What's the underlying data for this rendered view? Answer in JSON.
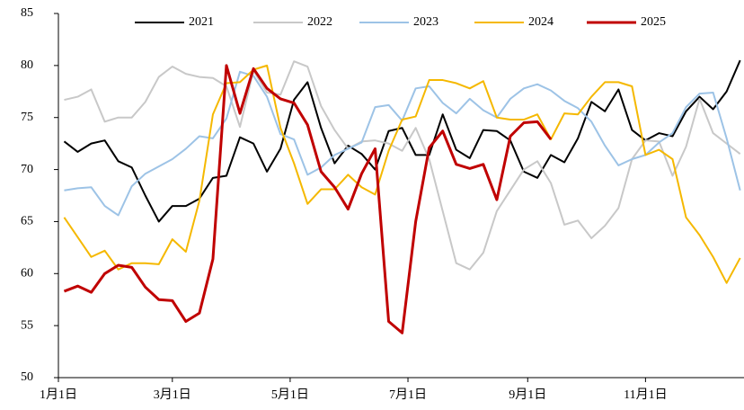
{
  "chart_data": {
    "type": "line",
    "x": [
      3,
      10,
      17,
      24,
      31,
      38,
      45,
      52,
      59,
      66,
      73,
      80,
      87,
      94,
      101,
      108,
      115,
      122,
      129,
      136,
      143,
      150,
      157,
      164,
      171,
      178,
      185,
      192,
      199,
      206,
      213,
      220,
      227,
      234,
      241,
      248,
      255,
      262,
      269,
      276,
      283,
      290,
      297,
      304,
      311,
      318,
      325,
      332,
      339,
      346,
      353
    ],
    "xlim": [
      0,
      355
    ],
    "xticks": [
      {
        "value": 0,
        "label": "1月1日"
      },
      {
        "value": 59,
        "label": "3月1日"
      },
      {
        "value": 120,
        "label": "5月1日"
      },
      {
        "value": 181,
        "label": "7月1日"
      },
      {
        "value": 243,
        "label": "9月1日"
      },
      {
        "value": 304,
        "label": "11月1日"
      }
    ],
    "ylim": [
      50,
      85
    ],
    "yticks": [
      50,
      55,
      60,
      65,
      70,
      75,
      80,
      85
    ],
    "grid": false,
    "legend": "top",
    "series": [
      {
        "name": "2021",
        "color": "#000000",
        "values": [
          72.7,
          71.7,
          72.5,
          72.8,
          70.8,
          70.2,
          67.5,
          65.0,
          66.5,
          66.5,
          67.2,
          69.2,
          69.4,
          73.1,
          72.5,
          69.8,
          72.0,
          76.7,
          78.4,
          74.0,
          70.6,
          72.3,
          71.5,
          70.0,
          73.7,
          74.0,
          71.4,
          71.4,
          75.3,
          71.9,
          71.1,
          73.8,
          73.7,
          72.8,
          69.8,
          69.2,
          71.4,
          70.7,
          73.0,
          76.5,
          75.6,
          77.7,
          73.8,
          72.8,
          73.5,
          73.2,
          75.6,
          77.0,
          75.8,
          77.5,
          80.5
        ]
      },
      {
        "name": "2022",
        "color": "#c8c8c8",
        "values": [
          76.7,
          77.0,
          77.7,
          74.6,
          75.0,
          75.0,
          76.5,
          78.9,
          79.9,
          79.2,
          78.9,
          78.8,
          78.0,
          74.1,
          79.5,
          77.4,
          77.2,
          80.4,
          79.9,
          76.1,
          73.8,
          72.0,
          72.7,
          72.8,
          72.5,
          71.8,
          74.0,
          71.0,
          66.0,
          61.0,
          60.4,
          62.0,
          66.0,
          68.0,
          70.0,
          70.8,
          68.7,
          64.7,
          65.1,
          63.4,
          64.6,
          66.3,
          71.0,
          72.8,
          72.7,
          69.4,
          72.2,
          76.8,
          73.5,
          72.5,
          71.5
        ]
      },
      {
        "name": "2023",
        "color": "#9dc3e6",
        "values": [
          68.0,
          68.2,
          68.3,
          66.5,
          65.6,
          68.4,
          69.6,
          70.3,
          71.0,
          72.0,
          73.2,
          73.0,
          74.9,
          79.4,
          79.0,
          77.0,
          73.4,
          72.9,
          69.5,
          70.2,
          71.4,
          72.0,
          72.6,
          76.0,
          76.2,
          74.7,
          77.8,
          78.0,
          76.4,
          75.4,
          76.8,
          75.7,
          75.0,
          76.8,
          77.8,
          78.2,
          77.6,
          76.6,
          75.9,
          74.6,
          72.3,
          70.4,
          71.0,
          71.4,
          72.6,
          73.5,
          76.0,
          77.3,
          77.4,
          73.0,
          68.0
        ]
      },
      {
        "name": "2024",
        "color": "#f5b800",
        "values": [
          65.4,
          63.5,
          61.6,
          62.2,
          60.4,
          61.0,
          61.0,
          60.9,
          63.3,
          62.1,
          67.0,
          75.3,
          78.3,
          78.4,
          79.6,
          80.0,
          74.0,
          70.6,
          66.7,
          68.1,
          68.1,
          69.5,
          68.3,
          67.6,
          71.8,
          74.8,
          75.1,
          78.6,
          78.6,
          78.3,
          77.8,
          78.5,
          75.0,
          74.8,
          74.8,
          75.3,
          72.9,
          75.4,
          75.3,
          77.0,
          78.4,
          78.4,
          78.0,
          71.4,
          71.9,
          71.0,
          65.4,
          63.7,
          61.6,
          59.1,
          61.5
        ]
      },
      {
        "name": "2025",
        "color": "#c00000",
        "values": [
          58.3,
          58.8,
          58.2,
          60.0,
          60.8,
          60.6,
          58.7,
          57.5,
          57.4,
          55.4,
          56.2,
          61.4,
          80.0,
          75.4,
          79.7,
          77.8,
          76.8,
          76.4,
          74.3,
          69.8,
          68.3,
          66.2,
          69.6,
          72.0,
          55.4,
          54.3,
          65.0,
          72.1,
          73.7,
          70.5,
          70.1,
          70.5,
          67.1,
          73.2,
          74.5,
          74.6,
          72.9,
          null,
          null,
          null,
          null,
          null,
          null,
          null,
          null,
          null,
          null,
          null,
          null,
          null,
          null
        ]
      }
    ]
  }
}
